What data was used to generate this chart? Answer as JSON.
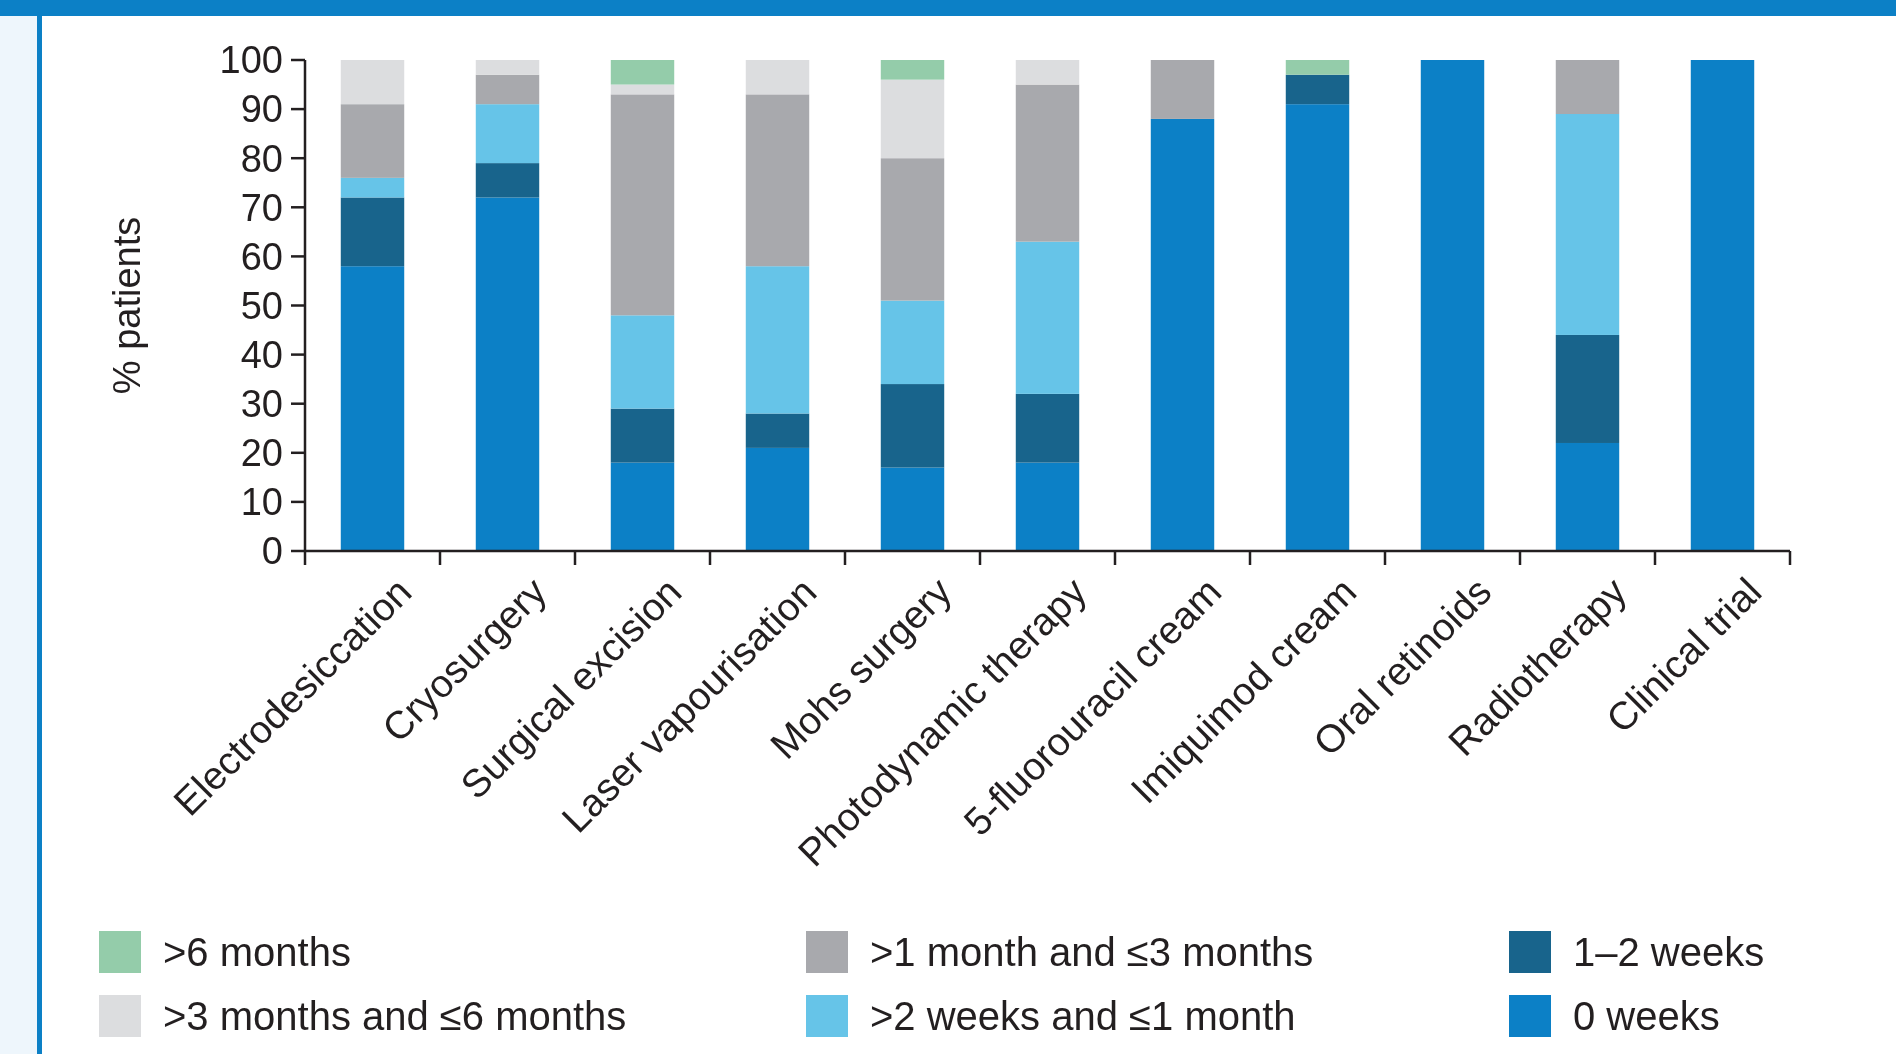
{
  "chart_data": {
    "type": "bar",
    "stacked": true,
    "ylabel": "% patients",
    "categories": [
      "Electrodesiccation",
      "Cryosurgery",
      "Surgical excision",
      "Laser vapourisation",
      "Mohs surgery",
      "Photodynamic therapy",
      "5-fluorouracil cream",
      "Imiquimod cream",
      "Oral retinoids",
      "Radiotherapy",
      "Clinical trial"
    ],
    "series": [
      {
        "name": "0 weeks",
        "color": "#0c80c6",
        "values": [
          58,
          72,
          18,
          21,
          17,
          18,
          88,
          91,
          100,
          22,
          100
        ]
      },
      {
        "name": "1–2 weeks",
        "color": "#18648c",
        "values": [
          14,
          7,
          11,
          7,
          17,
          14,
          0,
          6,
          0,
          22,
          0
        ]
      },
      {
        "name": ">2 weeks and ≤1 month",
        "color": "#66c4e8",
        "values": [
          4,
          12,
          19,
          30,
          17,
          31,
          0,
          0,
          0,
          45,
          0
        ]
      },
      {
        "name": ">1 month and ≤3 months",
        "color": "#a8a9ad",
        "values": [
          15,
          6,
          45,
          35,
          29,
          32,
          12,
          0,
          0,
          11,
          0
        ]
      },
      {
        "name": ">3 months and ≤6 months",
        "color": "#dcdddf",
        "values": [
          9,
          3,
          2,
          7,
          16,
          5,
          0,
          0,
          0,
          0,
          0
        ]
      },
      {
        "name": ">6 months",
        "color": "#94ccaa",
        "values": [
          0,
          0,
          5,
          0,
          4,
          0,
          0,
          3,
          0,
          0,
          0
        ]
      }
    ],
    "ylim": [
      0,
      100
    ],
    "yticks": [
      0,
      10,
      20,
      30,
      40,
      50,
      60,
      70,
      80,
      90,
      100
    ],
    "legend": "bottom",
    "grid": false
  }
}
